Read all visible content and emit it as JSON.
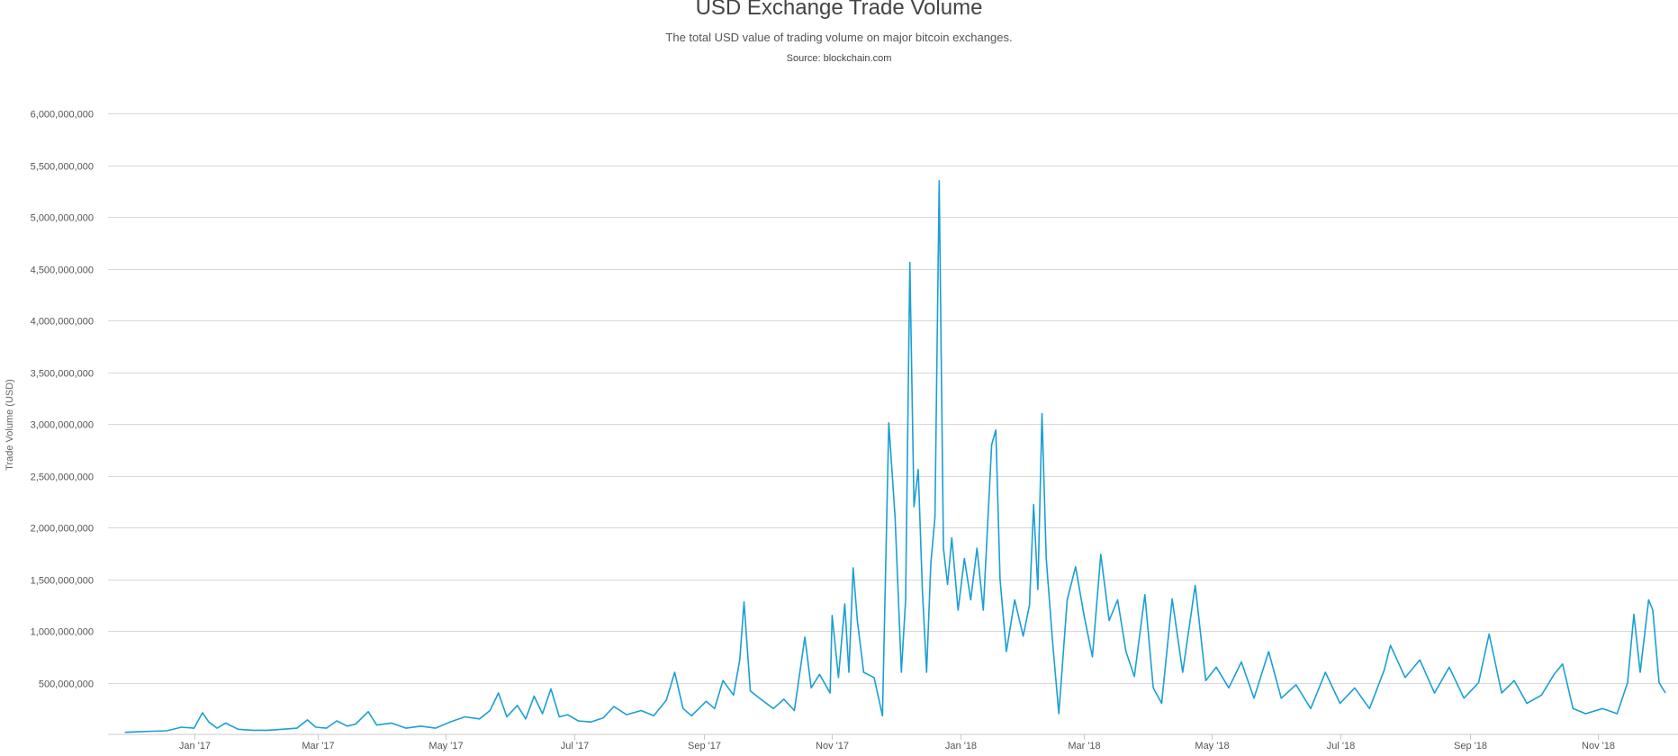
{
  "header": {
    "title": "USD Exchange Trade Volume",
    "subtitle": "The total USD value of trading volume on major bitcoin exchanges.",
    "source": "Source: blockchain.com"
  },
  "colors": {
    "series": "#1b9fd5",
    "grid": "#d8d8d8"
  },
  "chart_data": {
    "type": "line",
    "title": "USD Exchange Trade Volume",
    "subtitle": "The total USD value of trading volume on major bitcoin exchanges.",
    "xlabel": "",
    "ylabel": "Trade Volume (USD)",
    "ylim": [
      0,
      6000000000
    ],
    "yticks": [
      500000000,
      1000000000,
      1500000000,
      2000000000,
      2500000000,
      3000000000,
      3500000000,
      4000000000,
      4500000000,
      5000000000,
      5500000000,
      6000000000
    ],
    "ytick_labels": [
      "500,000,000",
      "1,000,000,000",
      "1,500,000,000",
      "2,000,000,000",
      "2,500,000,000",
      "3,000,000,000",
      "3,500,000,000",
      "4,000,000,000",
      "4,500,000,000",
      "5,000,000,000",
      "5,500,000,000",
      "6,000,000,000"
    ],
    "xlim": [
      "2016-11-21",
      "2018-12-09"
    ],
    "xticks": [
      "2017-01-01",
      "2017-03-01",
      "2017-05-01",
      "2017-07-01",
      "2017-09-01",
      "2017-11-01",
      "2018-01-01",
      "2018-03-01",
      "2018-05-01",
      "2018-07-01",
      "2018-09-01",
      "2018-11-01"
    ],
    "xtick_labels": [
      "Jan '17",
      "Mar '17",
      "May '17",
      "Jul '17",
      "Sep '17",
      "Nov '17",
      "Jan '18",
      "Mar '18",
      "May '18",
      "Jul '18",
      "Sep '18",
      "Nov '18"
    ],
    "grid": true,
    "legend": "none",
    "series": [
      {
        "points": [
          [
            "2016-11-29",
            20000000
          ],
          [
            "2016-12-05",
            25000000
          ],
          [
            "2016-12-12",
            30000000
          ],
          [
            "2016-12-19",
            35000000
          ],
          [
            "2016-12-26",
            70000000
          ],
          [
            "2017-01-01",
            60000000
          ],
          [
            "2017-01-05",
            210000000
          ],
          [
            "2017-01-08",
            120000000
          ],
          [
            "2017-01-12",
            60000000
          ],
          [
            "2017-01-16",
            110000000
          ],
          [
            "2017-01-22",
            50000000
          ],
          [
            "2017-01-29",
            40000000
          ],
          [
            "2017-02-05",
            40000000
          ],
          [
            "2017-02-12",
            50000000
          ],
          [
            "2017-02-19",
            60000000
          ],
          [
            "2017-02-24",
            140000000
          ],
          [
            "2017-02-28",
            70000000
          ],
          [
            "2017-03-05",
            60000000
          ],
          [
            "2017-03-10",
            130000000
          ],
          [
            "2017-03-15",
            80000000
          ],
          [
            "2017-03-19",
            100000000
          ],
          [
            "2017-03-25",
            220000000
          ],
          [
            "2017-03-29",
            90000000
          ],
          [
            "2017-04-05",
            110000000
          ],
          [
            "2017-04-12",
            60000000
          ],
          [
            "2017-04-19",
            80000000
          ],
          [
            "2017-04-26",
            60000000
          ],
          [
            "2017-05-03",
            120000000
          ],
          [
            "2017-05-10",
            170000000
          ],
          [
            "2017-05-17",
            150000000
          ],
          [
            "2017-05-22",
            230000000
          ],
          [
            "2017-05-26",
            400000000
          ],
          [
            "2017-05-30",
            170000000
          ],
          [
            "2017-06-04",
            280000000
          ],
          [
            "2017-06-08",
            150000000
          ],
          [
            "2017-06-12",
            370000000
          ],
          [
            "2017-06-16",
            200000000
          ],
          [
            "2017-06-20",
            440000000
          ],
          [
            "2017-06-24",
            170000000
          ],
          [
            "2017-06-28",
            190000000
          ],
          [
            "2017-07-03",
            130000000
          ],
          [
            "2017-07-09",
            120000000
          ],
          [
            "2017-07-15",
            160000000
          ],
          [
            "2017-07-20",
            270000000
          ],
          [
            "2017-07-26",
            190000000
          ],
          [
            "2017-08-02",
            230000000
          ],
          [
            "2017-08-08",
            180000000
          ],
          [
            "2017-08-14",
            330000000
          ],
          [
            "2017-08-18",
            600000000
          ],
          [
            "2017-08-22",
            250000000
          ],
          [
            "2017-08-26",
            180000000
          ],
          [
            "2017-09-02",
            320000000
          ],
          [
            "2017-09-06",
            250000000
          ],
          [
            "2017-09-10",
            520000000
          ],
          [
            "2017-09-15",
            380000000
          ],
          [
            "2017-09-18",
            720000000
          ],
          [
            "2017-09-20",
            1280000000
          ],
          [
            "2017-09-23",
            420000000
          ],
          [
            "2017-09-28",
            340000000
          ],
          [
            "2017-10-04",
            250000000
          ],
          [
            "2017-10-09",
            340000000
          ],
          [
            "2017-10-14",
            230000000
          ],
          [
            "2017-10-19",
            940000000
          ],
          [
            "2017-10-22",
            450000000
          ],
          [
            "2017-10-26",
            580000000
          ],
          [
            "2017-10-31",
            400000000
          ],
          [
            "2017-11-01",
            1150000000
          ],
          [
            "2017-11-04",
            550000000
          ],
          [
            "2017-11-07",
            1260000000
          ],
          [
            "2017-11-09",
            600000000
          ],
          [
            "2017-11-11",
            1610000000
          ],
          [
            "2017-11-13",
            1100000000
          ],
          [
            "2017-11-16",
            600000000
          ],
          [
            "2017-11-21",
            550000000
          ],
          [
            "2017-11-25",
            180000000
          ],
          [
            "2017-11-28",
            3010000000
          ],
          [
            "2017-12-01",
            2100000000
          ],
          [
            "2017-12-04",
            600000000
          ],
          [
            "2017-12-06",
            1300000000
          ],
          [
            "2017-12-08",
            4560000000
          ],
          [
            "2017-12-10",
            2200000000
          ],
          [
            "2017-12-12",
            2560000000
          ],
          [
            "2017-12-14",
            1400000000
          ],
          [
            "2017-12-16",
            600000000
          ],
          [
            "2017-12-18",
            1650000000
          ],
          [
            "2017-12-20",
            2100000000
          ],
          [
            "2017-12-22",
            5350000000
          ],
          [
            "2017-12-24",
            1800000000
          ],
          [
            "2017-12-26",
            1450000000
          ],
          [
            "2017-12-28",
            1900000000
          ],
          [
            "2017-12-31",
            1200000000
          ],
          [
            "2018-01-03",
            1700000000
          ],
          [
            "2018-01-06",
            1300000000
          ],
          [
            "2018-01-09",
            1800000000
          ],
          [
            "2018-01-12",
            1200000000
          ],
          [
            "2018-01-16",
            2800000000
          ],
          [
            "2018-01-18",
            2940000000
          ],
          [
            "2018-01-20",
            1500000000
          ],
          [
            "2018-01-23",
            800000000
          ],
          [
            "2018-01-27",
            1300000000
          ],
          [
            "2018-01-31",
            950000000
          ],
          [
            "2018-02-03",
            1250000000
          ],
          [
            "2018-02-05",
            2220000000
          ],
          [
            "2018-02-07",
            1400000000
          ],
          [
            "2018-02-09",
            3100000000
          ],
          [
            "2018-02-11",
            1700000000
          ],
          [
            "2018-02-14",
            900000000
          ],
          [
            "2018-02-17",
            200000000
          ],
          [
            "2018-02-21",
            1300000000
          ],
          [
            "2018-02-25",
            1620000000
          ],
          [
            "2018-03-01",
            1150000000
          ],
          [
            "2018-03-05",
            750000000
          ],
          [
            "2018-03-09",
            1740000000
          ],
          [
            "2018-03-13",
            1100000000
          ],
          [
            "2018-03-17",
            1300000000
          ],
          [
            "2018-03-21",
            800000000
          ],
          [
            "2018-03-25",
            560000000
          ],
          [
            "2018-03-30",
            1350000000
          ],
          [
            "2018-04-03",
            450000000
          ],
          [
            "2018-04-07",
            300000000
          ],
          [
            "2018-04-12",
            1310000000
          ],
          [
            "2018-04-17",
            600000000
          ],
          [
            "2018-04-23",
            1440000000
          ],
          [
            "2018-04-28",
            520000000
          ],
          [
            "2018-05-03",
            650000000
          ],
          [
            "2018-05-09",
            450000000
          ],
          [
            "2018-05-15",
            700000000
          ],
          [
            "2018-05-21",
            350000000
          ],
          [
            "2018-05-28",
            800000000
          ],
          [
            "2018-06-03",
            350000000
          ],
          [
            "2018-06-10",
            480000000
          ],
          [
            "2018-06-17",
            250000000
          ],
          [
            "2018-06-24",
            600000000
          ],
          [
            "2018-07-01",
            300000000
          ],
          [
            "2018-07-08",
            450000000
          ],
          [
            "2018-07-15",
            250000000
          ],
          [
            "2018-07-22",
            620000000
          ],
          [
            "2018-07-25",
            860000000
          ],
          [
            "2018-08-01",
            550000000
          ],
          [
            "2018-08-08",
            720000000
          ],
          [
            "2018-08-15",
            400000000
          ],
          [
            "2018-08-22",
            650000000
          ],
          [
            "2018-08-29",
            350000000
          ],
          [
            "2018-09-05",
            500000000
          ],
          [
            "2018-09-10",
            970000000
          ],
          [
            "2018-09-16",
            400000000
          ],
          [
            "2018-09-22",
            520000000
          ],
          [
            "2018-09-28",
            300000000
          ],
          [
            "2018-10-05",
            380000000
          ],
          [
            "2018-10-11",
            580000000
          ],
          [
            "2018-10-15",
            680000000
          ],
          [
            "2018-10-20",
            250000000
          ],
          [
            "2018-10-26",
            200000000
          ],
          [
            "2018-11-03",
            250000000
          ],
          [
            "2018-11-10",
            200000000
          ],
          [
            "2018-11-15",
            500000000
          ],
          [
            "2018-11-18",
            1160000000
          ],
          [
            "2018-11-21",
            600000000
          ],
          [
            "2018-11-25",
            1300000000
          ],
          [
            "2018-11-27",
            1200000000
          ],
          [
            "2018-11-30",
            500000000
          ],
          [
            "2018-12-03",
            400000000
          ]
        ]
      }
    ]
  }
}
